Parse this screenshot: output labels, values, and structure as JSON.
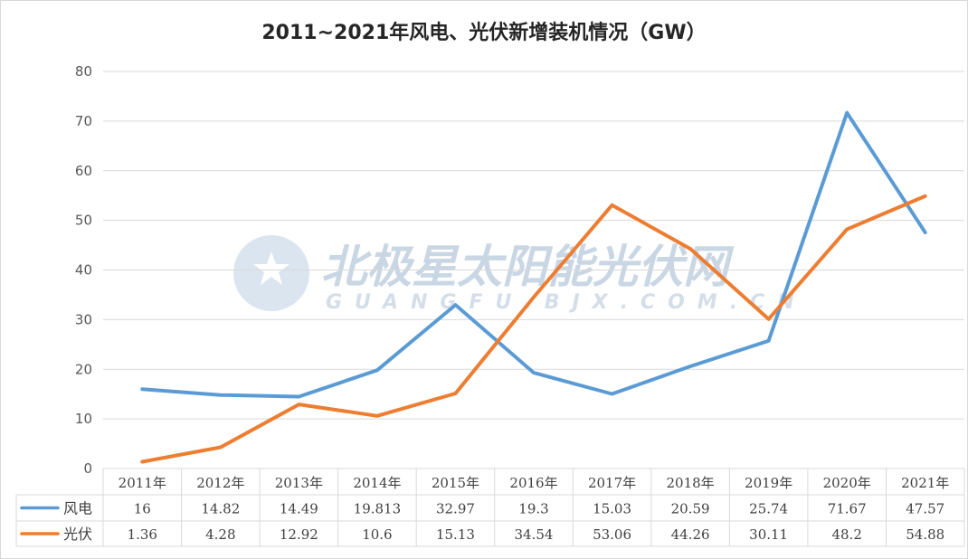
{
  "chart_data": {
    "type": "line",
    "title": "2011~2021年风电、光伏新增装机情况（GW）",
    "categories": [
      "2011年",
      "2012年",
      "2013年",
      "2014年",
      "2015年",
      "2016年",
      "2017年",
      "2018年",
      "2019年",
      "2020年",
      "2021年"
    ],
    "series": [
      {
        "name": "风电",
        "color": "#5b9bd5",
        "values": [
          16,
          14.82,
          14.49,
          19.813,
          32.97,
          19.3,
          15.03,
          20.59,
          25.74,
          71.67,
          47.57
        ]
      },
      {
        "name": "光伏",
        "color": "#ed7d31",
        "values": [
          1.36,
          4.28,
          12.92,
          10.6,
          15.13,
          34.54,
          53.06,
          44.26,
          30.11,
          48.2,
          54.88
        ]
      }
    ],
    "ylim": [
      0,
      80
    ],
    "yticks": [
      0,
      10,
      20,
      30,
      40,
      50,
      60,
      70,
      80
    ],
    "grid": true,
    "legend": "data-table"
  },
  "watermark": {
    "text": "北极星太阳能光伏网",
    "subtext": "GUANGFU.BJX.COM.CN"
  }
}
